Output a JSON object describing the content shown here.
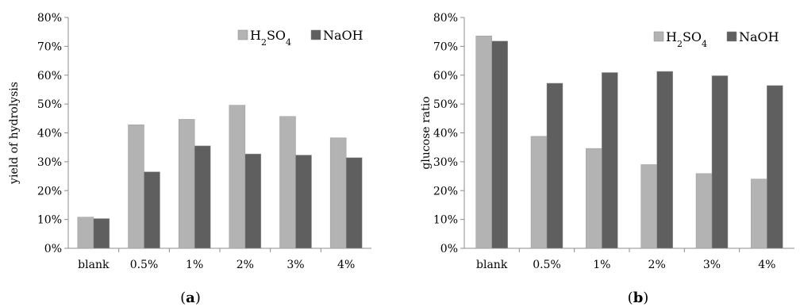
{
  "chart_data": [
    {
      "type": "bar",
      "panel_label": "(a)",
      "ylabel": "yield of hydrolysis",
      "xlabel": "",
      "categories": [
        "blank",
        "0.5%",
        "1%",
        "2%",
        "3%",
        "4%"
      ],
      "ylim": [
        0,
        80
      ],
      "yticks": [
        "0%",
        "10%",
        "20%",
        "30%",
        "40%",
        "50%",
        "60%",
        "70%",
        "80%"
      ],
      "legend_position": "top-right",
      "series": [
        {
          "name": "H2SO4",
          "color": "#b3b3b3",
          "values": [
            10.8,
            42.8,
            44.7,
            49.6,
            45.7,
            38.3
          ]
        },
        {
          "name": "NaOH",
          "color": "#5f5f5f",
          "values": [
            10.3,
            26.5,
            35.5,
            32.7,
            32.3,
            31.4
          ]
        }
      ]
    },
    {
      "type": "bar",
      "panel_label": "(b)",
      "ylabel": "glucose ratio",
      "xlabel": "",
      "categories": [
        "blank",
        "0.5%",
        "1%",
        "2%",
        "3%",
        "4%"
      ],
      "ylim": [
        0,
        80
      ],
      "yticks": [
        "0%",
        "10%",
        "20%",
        "30%",
        "40%",
        "50%",
        "60%",
        "70%",
        "80%"
      ],
      "legend_position": "top-right",
      "series": [
        {
          "name": "H2SO4",
          "color": "#b3b3b3",
          "values": [
            73.6,
            38.8,
            34.6,
            29.0,
            25.9,
            24.0
          ]
        },
        {
          "name": "NaOH",
          "color": "#5f5f5f",
          "values": [
            71.8,
            57.2,
            60.9,
            61.3,
            59.8,
            56.4
          ]
        }
      ]
    }
  ]
}
